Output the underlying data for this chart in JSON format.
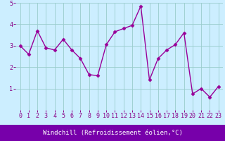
{
  "x": [
    0,
    1,
    2,
    3,
    4,
    5,
    6,
    7,
    8,
    9,
    10,
    11,
    12,
    13,
    14,
    15,
    16,
    17,
    18,
    19,
    20,
    21,
    22,
    23
  ],
  "y": [
    3.0,
    2.6,
    3.7,
    2.9,
    2.8,
    3.3,
    2.8,
    2.4,
    1.65,
    1.6,
    3.05,
    3.65,
    3.8,
    3.95,
    4.85,
    1.4,
    2.4,
    2.8,
    3.05,
    3.6,
    0.75,
    1.0,
    0.6,
    1.1
  ],
  "line_color": "#990099",
  "marker": "D",
  "markersize": 2.5,
  "linewidth": 1.0,
  "xlabel": "Windchill (Refroidissement éolien,°C)",
  "ylim": [
    0,
    5
  ],
  "xlim": [
    -0.5,
    23.5
  ],
  "yticks": [
    1,
    2,
    3,
    4,
    5
  ],
  "xticks": [
    0,
    1,
    2,
    3,
    4,
    5,
    6,
    7,
    8,
    9,
    10,
    11,
    12,
    13,
    14,
    15,
    16,
    17,
    18,
    19,
    20,
    21,
    22,
    23
  ],
  "bg_color": "#cceeff",
  "grid_color": "#99cccc",
  "line_purple": "#990099",
  "xlabel_bg": "#7700aa",
  "xlabel_fg": "#ffffff",
  "tick_color": "#880088",
  "xlabel_fontsize": 6.5,
  "tick_fontsize": 6.0
}
